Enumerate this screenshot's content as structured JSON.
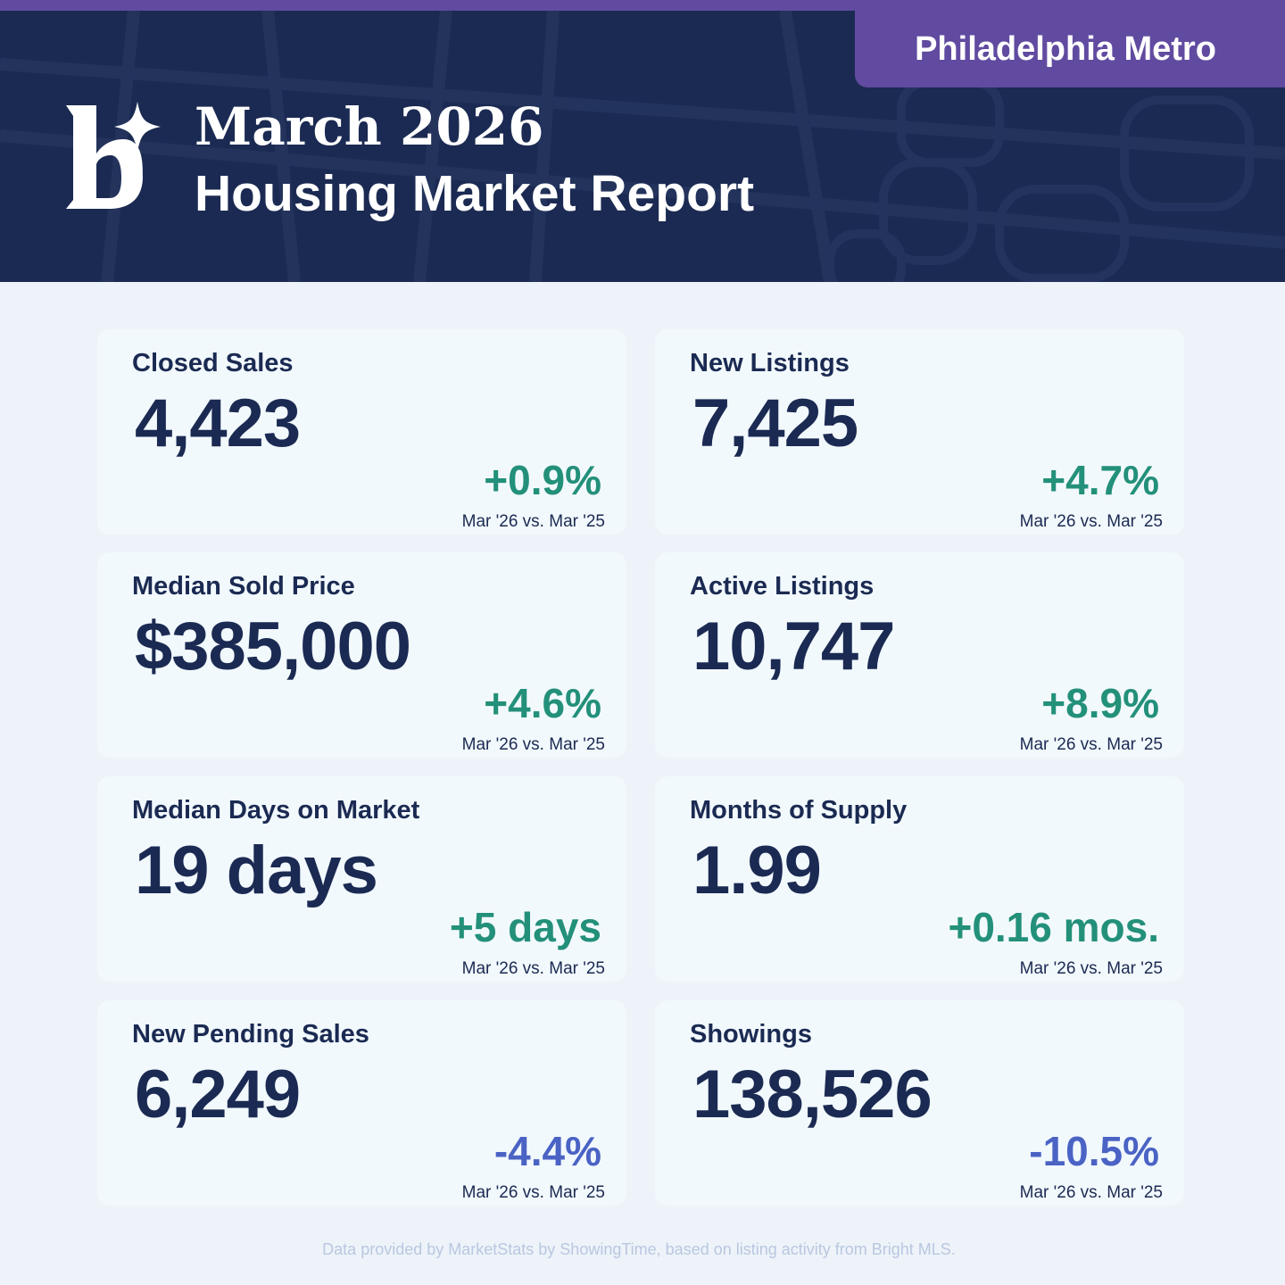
{
  "header": {
    "region": "Philadelphia Metro",
    "title_line1": "March 2026",
    "title_line2": "Housing Market Report",
    "logo_icon": "b-sparkle-logo-icon"
  },
  "colors": {
    "navy": "#1b2a52",
    "purple": "#614ba0",
    "positive": "#23907a",
    "negative": "#4a63c4",
    "card_bg": "#f2f9fd",
    "page_bg": "#edf3f9"
  },
  "cards": [
    {
      "label": "Closed Sales",
      "value": "4,423",
      "change": "+0.9%",
      "direction": "up",
      "period": "Mar '26 vs. Mar '25"
    },
    {
      "label": "New Listings",
      "value": "7,425",
      "change": "+4.7%",
      "direction": "up",
      "period": "Mar '26 vs. Mar '25"
    },
    {
      "label": "Median Sold Price",
      "value": "$385,000",
      "change": "+4.6%",
      "direction": "up",
      "period": "Mar '26 vs. Mar '25"
    },
    {
      "label": "Active Listings",
      "value": "10,747",
      "change": "+8.9%",
      "direction": "up",
      "period": "Mar '26 vs. Mar '25"
    },
    {
      "label": "Median Days on Market",
      "value": "19 days",
      "change": "+5 days",
      "direction": "up",
      "period": "Mar '26 vs. Mar '25"
    },
    {
      "label": "Months of Supply",
      "value": "1.99",
      "change": "+0.16 mos.",
      "direction": "up",
      "period": "Mar '26 vs. Mar '25"
    },
    {
      "label": "New Pending Sales",
      "value": "6,249",
      "change": "-4.4%",
      "direction": "down",
      "period": "Mar '26 vs. Mar '25"
    },
    {
      "label": "Showings",
      "value": "138,526",
      "change": "-10.5%",
      "direction": "down",
      "period": "Mar '26 vs. Mar '25"
    }
  ],
  "footer": "Data provided by MarketStats by ShowingTime, based on listing activity from Bright MLS."
}
